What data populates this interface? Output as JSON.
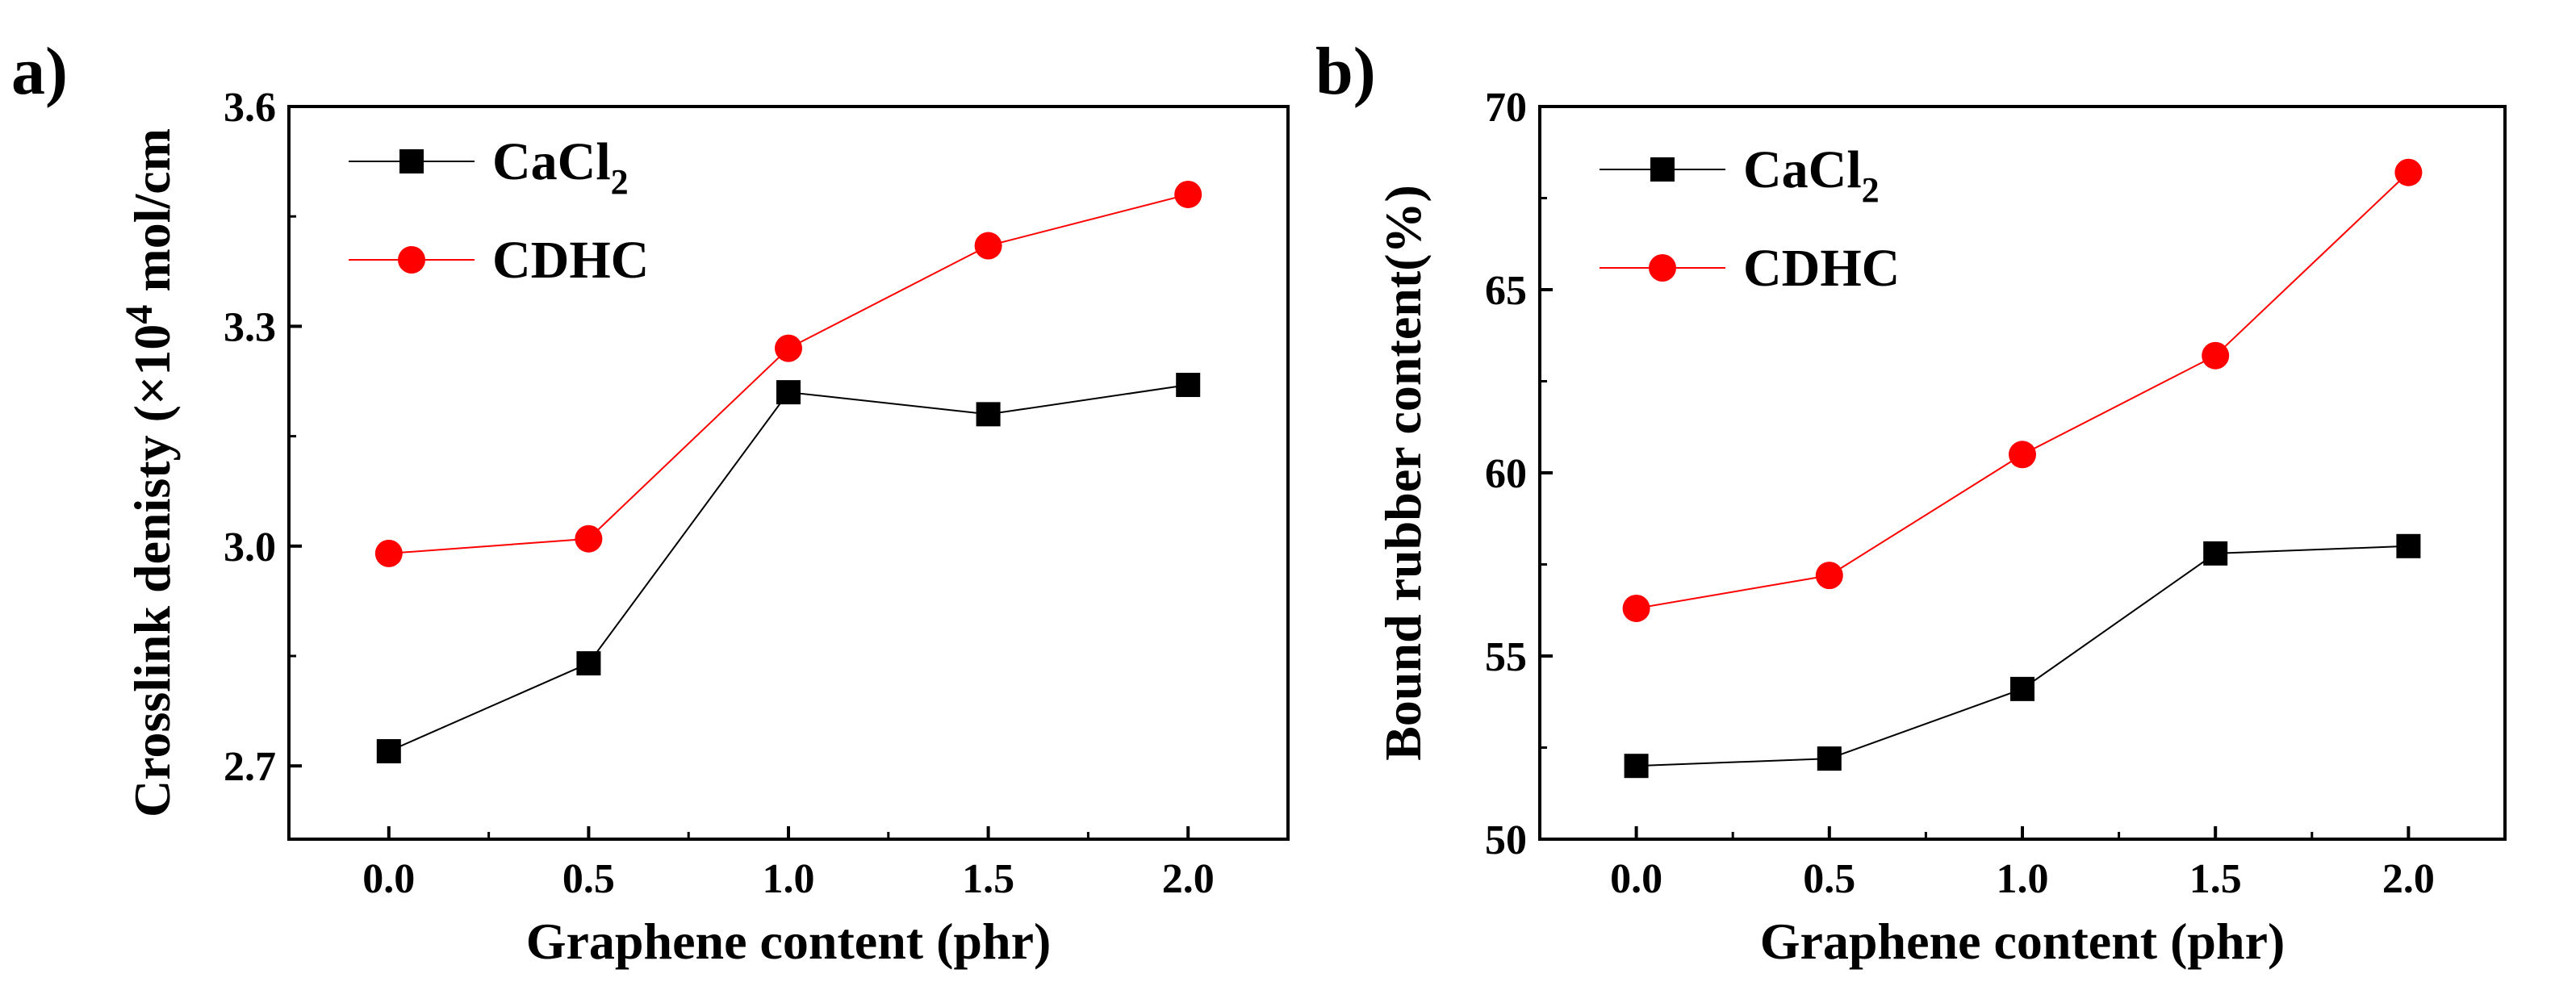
{
  "chart_data": [
    {
      "panel_label": "a)",
      "type": "line",
      "xlabel": "Graphene content (phr)",
      "ylabel_main": "Crosslink denisty (×10",
      "ylabel_sup": "4",
      "ylabel_tail": " mol/cm",
      "x": [
        0.0,
        0.5,
        1.0,
        1.5,
        2.0
      ],
      "xlim": [
        -0.25,
        2.25
      ],
      "ylim": [
        2.6,
        3.6
      ],
      "x_ticks": [
        "0.0",
        "0.5",
        "1.0",
        "1.5",
        "2.0"
      ],
      "y_ticks": [
        "2.7",
        "3.0",
        "3.3",
        "3.6"
      ],
      "legend_position": "top-left",
      "series": [
        {
          "name": "CaCl",
          "name_sub": "2",
          "marker": "square",
          "color": "#000000",
          "values": [
            2.72,
            2.84,
            3.21,
            3.18,
            3.22
          ]
        },
        {
          "name": "CDHC",
          "name_sub": "",
          "marker": "circle",
          "color": "#ff0000",
          "values": [
            2.99,
            3.01,
            3.27,
            3.41,
            3.48
          ]
        }
      ]
    },
    {
      "panel_label": "b)",
      "type": "line",
      "xlabel": "Graphene content (phr)",
      "ylabel_main": "Bound rubber content(%)",
      "ylabel_sup": "",
      "ylabel_tail": "",
      "x": [
        0.0,
        0.5,
        1.0,
        1.5,
        2.0
      ],
      "xlim": [
        -0.25,
        2.25
      ],
      "ylim": [
        50,
        70
      ],
      "x_ticks": [
        "0.0",
        "0.5",
        "1.0",
        "1.5",
        "2.0"
      ],
      "y_ticks": [
        "50",
        "55",
        "60",
        "65",
        "70"
      ],
      "legend_position": "top-left",
      "series": [
        {
          "name": "CaCl",
          "name_sub": "2",
          "marker": "square",
          "color": "#000000",
          "values": [
            52.0,
            52.2,
            54.1,
            57.8,
            58.0
          ]
        },
        {
          "name": "CDHC",
          "name_sub": "",
          "marker": "circle",
          "color": "#ff0000",
          "values": [
            56.3,
            57.2,
            60.5,
            63.2,
            68.2
          ]
        }
      ]
    }
  ]
}
